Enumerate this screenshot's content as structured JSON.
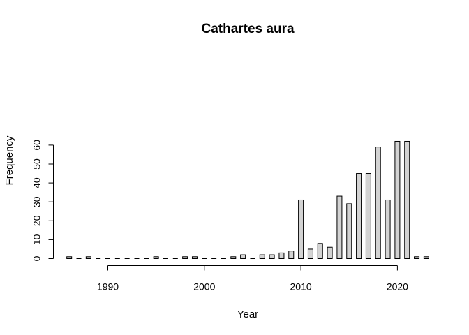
{
  "chart_data": {
    "type": "bar",
    "title": "Cathartes aura",
    "xlabel": "Year",
    "ylabel": "Frequency",
    "ylim": [
      0,
      62
    ],
    "y_ticks": [
      0,
      10,
      20,
      30,
      40,
      50,
      60
    ],
    "x_ticks": [
      1990,
      2000,
      2010,
      2020
    ],
    "bar_color": "#d3d3d3",
    "edge_color": "#000000",
    "x": [
      1986,
      1987,
      1988,
      1989,
      1990,
      1991,
      1992,
      1993,
      1994,
      1995,
      1996,
      1997,
      1998,
      1999,
      2000,
      2001,
      2002,
      2003,
      2004,
      2005,
      2006,
      2007,
      2008,
      2009,
      2010,
      2011,
      2012,
      2013,
      2014,
      2015,
      2016,
      2017,
      2018,
      2019,
      2020,
      2021,
      2022,
      2023
    ],
    "values": [
      1,
      0,
      1,
      0,
      0,
      0,
      0,
      0,
      0,
      1,
      0,
      0,
      1,
      1,
      0,
      0,
      0,
      1,
      2,
      0,
      2,
      2,
      3,
      4,
      31,
      5,
      8,
      6,
      33,
      29,
      45,
      45,
      59,
      31,
      62,
      62,
      1,
      1
    ]
  }
}
